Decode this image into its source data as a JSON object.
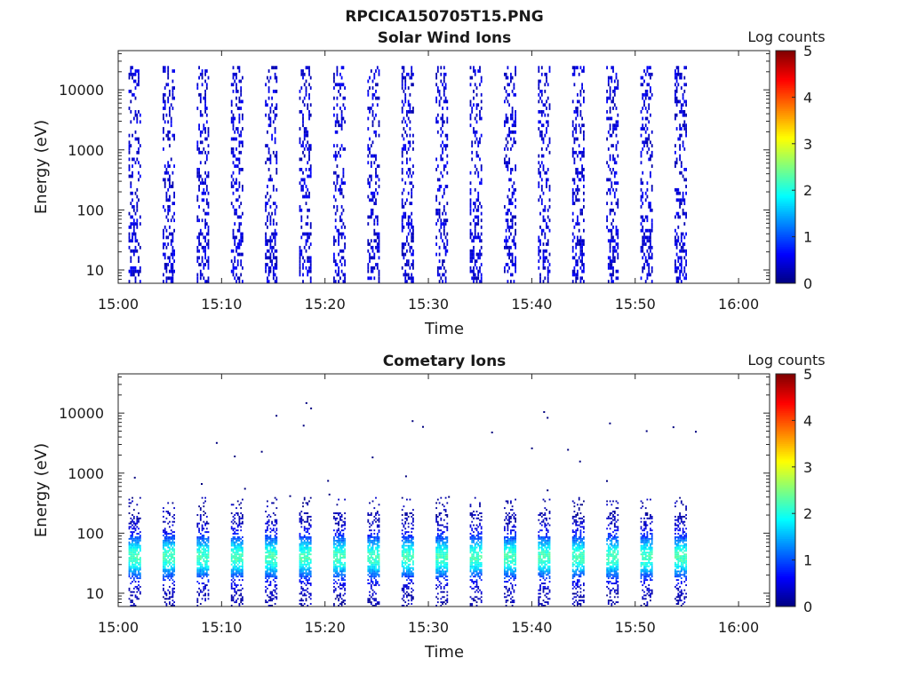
{
  "figure_title": "RPCICA150705T15.PNG",
  "colormap": [
    "#00007f",
    "#0000ff",
    "#007fff",
    "#00ffff",
    "#7fff7f",
    "#ffff00",
    "#ff7f00",
    "#ff0000",
    "#7f0000"
  ],
  "chart_data": [
    {
      "type": "heatmap",
      "title": "Solar Wind Ions",
      "xlabel": "Time",
      "ylabel": "Energy (eV)",
      "xlim": [
        "15:00",
        "16:03"
      ],
      "x_ticks": [
        "15:00",
        "15:10",
        "15:20",
        "15:30",
        "15:40",
        "15:50",
        "16:00"
      ],
      "ylim": [
        6,
        45000
      ],
      "y_scale": "log",
      "y_ticks": [
        10,
        100,
        1000,
        10000
      ],
      "y_tick_labels": [
        "10",
        "100",
        "1000",
        "10000"
      ],
      "colorbar_label": "Log counts",
      "colorbar_range": [
        0,
        5
      ],
      "colorbar_ticks": [
        0,
        1,
        2,
        3,
        4,
        5
      ],
      "sweep_start_minutes": [
        1.0,
        4.3,
        7.6,
        10.9,
        14.2,
        17.5,
        20.8,
        24.1,
        27.4,
        30.7,
        34.0,
        37.3,
        40.6,
        43.9,
        47.2,
        50.5,
        53.8
      ],
      "sweep_duration_minutes": 2.0,
      "data_end_minutes": 57.0,
      "energy_range_eV": [
        6,
        25000
      ],
      "dominant_log_counts": 0.2
    },
    {
      "type": "heatmap",
      "title": "Cometary Ions",
      "xlabel": "Time",
      "ylabel": "Energy (eV)",
      "xlim": [
        "15:00",
        "16:03"
      ],
      "x_ticks": [
        "15:00",
        "15:10",
        "15:20",
        "15:30",
        "15:40",
        "15:50",
        "16:00"
      ],
      "ylim": [
        6,
        45000
      ],
      "y_scale": "log",
      "y_ticks": [
        10,
        100,
        1000,
        10000
      ],
      "y_tick_labels": [
        "10",
        "100",
        "1000",
        "10000"
      ],
      "colorbar_label": "Log counts",
      "colorbar_range": [
        0,
        5
      ],
      "colorbar_ticks": [
        0,
        1,
        2,
        3,
        4,
        5
      ],
      "sweep_start_minutes": [
        1.0,
        4.3,
        7.6,
        10.9,
        14.2,
        17.5,
        20.8,
        24.1,
        27.4,
        30.7,
        34.0,
        37.3,
        40.6,
        43.9,
        47.2,
        50.5,
        53.8
      ],
      "sweep_duration_minutes": 2.0,
      "data_end_minutes": 57.0,
      "energy_range_eV": [
        6,
        400
      ],
      "peak_energy_eV": 40,
      "peak_log_counts": 2.0
    }
  ]
}
